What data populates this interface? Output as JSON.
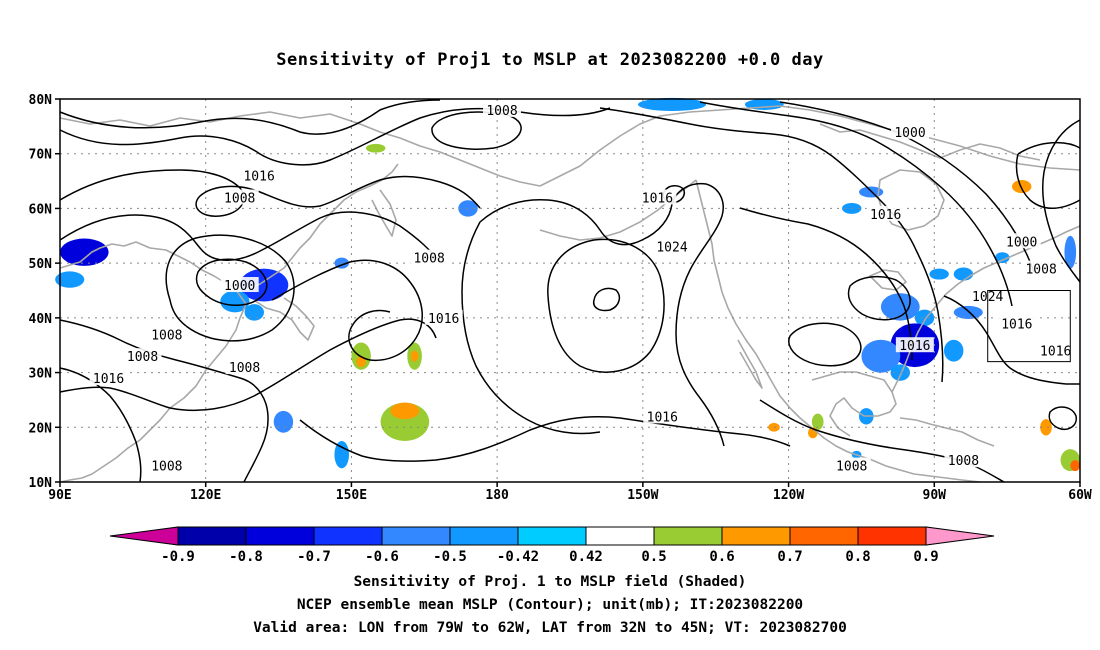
{
  "title": "Sensitivity of Proj1 to MSLP at 2023082200 +0.0 day",
  "captions": [
    "Sensitivity of Proj. 1 to MSLP field (Shaded)",
    "NCEP ensemble mean MSLP (Contour); unit(mb); IT:2023082200",
    "Valid area: LON from 79W to 62W, LAT from 32N to 45N; VT: 2023082700"
  ],
  "map": {
    "lon_range": [
      90,
      300
    ],
    "lat_range": [
      10,
      80
    ],
    "lat_ticks": [
      {
        "lat": 80,
        "label": "80N"
      },
      {
        "lat": 70,
        "label": "70N"
      },
      {
        "lat": 60,
        "label": "60N"
      },
      {
        "lat": 50,
        "label": "50N"
      },
      {
        "lat": 40,
        "label": "40N"
      },
      {
        "lat": 30,
        "label": "30N"
      },
      {
        "lat": 20,
        "label": "20N"
      },
      {
        "lat": 10,
        "label": "10N"
      }
    ],
    "lon_ticks": [
      {
        "lon": 90,
        "label": "90E"
      },
      {
        "lon": 120,
        "label": "120E"
      },
      {
        "lon": 150,
        "label": "150E"
      },
      {
        "lon": 180,
        "label": "180"
      },
      {
        "lon": 210,
        "label": "150W"
      },
      {
        "lon": 240,
        "label": "120W"
      },
      {
        "lon": 270,
        "label": "90W"
      },
      {
        "lon": 300,
        "label": "60W"
      }
    ],
    "valid_area": {
      "lon": [
        281,
        298
      ],
      "lat": [
        32,
        45
      ]
    },
    "contour_labels": [
      {
        "text": "1008",
        "lon": 181,
        "lat": 78
      },
      {
        "text": "1000",
        "lon": 265,
        "lat": 74
      },
      {
        "text": "1016",
        "lon": 131,
        "lat": 66
      },
      {
        "text": "1008",
        "lon": 127,
        "lat": 62
      },
      {
        "text": "1016",
        "lon": 213,
        "lat": 62
      },
      {
        "text": "1016",
        "lon": 260,
        "lat": 59
      },
      {
        "text": "1024",
        "lon": 216,
        "lat": 53
      },
      {
        "text": "1000",
        "lon": 288,
        "lat": 54
      },
      {
        "text": "1008",
        "lon": 166,
        "lat": 51
      },
      {
        "text": "1008",
        "lon": 292,
        "lat": 49
      },
      {
        "text": "1000",
        "lon": 127,
        "lat": 46
      },
      {
        "text": "1024",
        "lon": 281,
        "lat": 44
      },
      {
        "text": "1016",
        "lon": 169,
        "lat": 40
      },
      {
        "text": "1016",
        "lon": 287,
        "lat": 39
      },
      {
        "text": "1008",
        "lon": 112,
        "lat": 37
      },
      {
        "text": "1016",
        "lon": 266,
        "lat": 35
      },
      {
        "text": "1008",
        "lon": 107,
        "lat": 33
      },
      {
        "text": "1016",
        "lon": 295,
        "lat": 34
      },
      {
        "text": "1008",
        "lon": 128,
        "lat": 31
      },
      {
        "text": "1016",
        "lon": 100,
        "lat": 29
      },
      {
        "text": "1016",
        "lon": 214,
        "lat": 22
      },
      {
        "text": "1008",
        "lon": 253,
        "lat": 13
      },
      {
        "text": "1008",
        "lon": 276,
        "lat": 14
      },
      {
        "text": "1008",
        "lon": 112,
        "lat": 13
      }
    ],
    "sensitivity_blobs": [
      {
        "lon": 95,
        "lat": 52,
        "rx": 5,
        "ry": 2.5,
        "v": -0.75
      },
      {
        "lon": 92,
        "lat": 47,
        "rx": 3,
        "ry": 1.5,
        "v": -0.5
      },
      {
        "lon": 132,
        "lat": 46,
        "rx": 5,
        "ry": 3,
        "v": -0.65
      },
      {
        "lon": 126,
        "lat": 43,
        "rx": 3,
        "ry": 2,
        "v": -0.5
      },
      {
        "lon": 130,
        "lat": 41,
        "rx": 2,
        "ry": 1.5,
        "v": -0.5
      },
      {
        "lon": 136,
        "lat": 21,
        "rx": 2,
        "ry": 2,
        "v": -0.6
      },
      {
        "lon": 148,
        "lat": 15,
        "rx": 1.5,
        "ry": 2.5,
        "v": -0.5
      },
      {
        "lon": 148,
        "lat": 50,
        "rx": 1.5,
        "ry": 1,
        "v": -0.55
      },
      {
        "lon": 174,
        "lat": 60,
        "rx": 2,
        "ry": 1.5,
        "v": -0.6
      },
      {
        "lon": 216,
        "lat": 79,
        "rx": 7,
        "ry": 1.2,
        "v": -0.5
      },
      {
        "lon": 235,
        "lat": 79,
        "rx": 4,
        "ry": 1,
        "v": -0.5
      },
      {
        "lon": 257,
        "lat": 63,
        "rx": 2.5,
        "ry": 1,
        "v": -0.55
      },
      {
        "lon": 253,
        "lat": 60,
        "rx": 2,
        "ry": 1,
        "v": -0.5
      },
      {
        "lon": 271,
        "lat": 48,
        "rx": 2,
        "ry": 1,
        "v": -0.5
      },
      {
        "lon": 276,
        "lat": 48,
        "rx": 2,
        "ry": 1.2,
        "v": -0.5
      },
      {
        "lon": 263,
        "lat": 42,
        "rx": 4,
        "ry": 2.5,
        "v": -0.6
      },
      {
        "lon": 268,
        "lat": 40,
        "rx": 2,
        "ry": 1.5,
        "v": -0.5
      },
      {
        "lon": 277,
        "lat": 41,
        "rx": 3,
        "ry": 1.2,
        "v": -0.55
      },
      {
        "lon": 266,
        "lat": 35,
        "rx": 5,
        "ry": 4,
        "v": -0.75
      },
      {
        "lon": 259,
        "lat": 33,
        "rx": 4,
        "ry": 3,
        "v": -0.6
      },
      {
        "lon": 263,
        "lat": 30,
        "rx": 2,
        "ry": 1.5,
        "v": -0.5
      },
      {
        "lon": 274,
        "lat": 34,
        "rx": 2,
        "ry": 2,
        "v": -0.5
      },
      {
        "lon": 284,
        "lat": 51,
        "rx": 1.5,
        "ry": 1,
        "v": -0.5
      },
      {
        "lon": 298,
        "lat": 52,
        "rx": 1.2,
        "ry": 3,
        "v": -0.6
      },
      {
        "lon": 256,
        "lat": 22,
        "rx": 1.5,
        "ry": 1.5,
        "v": -0.5
      },
      {
        "lon": 254,
        "lat": 15,
        "rx": 1,
        "ry": 0.7,
        "v": -0.45
      },
      {
        "lon": 161,
        "lat": 21,
        "rx": 5,
        "ry": 3.5,
        "v": 0.5
      },
      {
        "lon": 161,
        "lat": 23,
        "rx": 3,
        "ry": 1.5,
        "v": 0.65
      },
      {
        "lon": 152,
        "lat": 33,
        "rx": 2,
        "ry": 2.5,
        "v": 0.5
      },
      {
        "lon": 152,
        "lat": 32,
        "rx": 1,
        "ry": 1,
        "v": 0.65
      },
      {
        "lon": 163,
        "lat": 33,
        "rx": 1.5,
        "ry": 2.5,
        "v": 0.5
      },
      {
        "lon": 163,
        "lat": 33,
        "rx": 0.8,
        "ry": 1,
        "v": 0.65
      },
      {
        "lon": 104,
        "lat": 27,
        "rx": 2,
        "ry": 1,
        "v": 0.45
      },
      {
        "lon": 164,
        "lat": 13,
        "rx": 2,
        "ry": 2,
        "v": 0.45
      },
      {
        "lon": 151,
        "lat": 74,
        "rx": 4,
        "ry": 1.5,
        "v": 0.45
      },
      {
        "lon": 160,
        "lat": 73,
        "rx": 4,
        "ry": 1.5,
        "v": 0.45
      },
      {
        "lon": 155,
        "lat": 71,
        "rx": 2,
        "ry": 0.8,
        "v": 0.55
      },
      {
        "lon": 290,
        "lat": 65,
        "rx": 4,
        "ry": 2.5,
        "v": 0.45
      },
      {
        "lon": 288,
        "lat": 64,
        "rx": 2,
        "ry": 1.2,
        "v": 0.6
      },
      {
        "lon": 296,
        "lat": 49,
        "rx": 1,
        "ry": 1,
        "v": 0.45
      },
      {
        "lon": 298,
        "lat": 14,
        "rx": 2,
        "ry": 2,
        "v": 0.5
      },
      {
        "lon": 299,
        "lat": 13,
        "rx": 1,
        "ry": 1,
        "v": 0.7
      },
      {
        "lon": 293,
        "lat": 20,
        "rx": 1.2,
        "ry": 1.5,
        "v": 0.6
      },
      {
        "lon": 246,
        "lat": 21,
        "rx": 1.2,
        "ry": 1.5,
        "v": 0.55
      },
      {
        "lon": 245,
        "lat": 19,
        "rx": 1,
        "ry": 1,
        "v": 0.6
      },
      {
        "lon": 237,
        "lat": 20,
        "rx": 1.2,
        "ry": 0.8,
        "v": 0.6
      },
      {
        "lon": 246,
        "lat": 50,
        "rx": 0.8,
        "ry": 1,
        "v": 0.45
      },
      {
        "lon": 199,
        "lat": 50,
        "rx": 0.6,
        "ry": 1,
        "v": 0.45
      }
    ]
  },
  "colorbar": {
    "levels": [
      "-0.9",
      "-0.8",
      "-0.7",
      "-0.6",
      "-0.5",
      "-0.42",
      "0.42",
      "0.5",
      "0.6",
      "0.7",
      "0.8",
      "0.9"
    ],
    "colors": [
      "#cc0099",
      "#0000aa",
      "#0000dd",
      "#1133ff",
      "#3388ff",
      "#1199ff",
      "#00ccff",
      "#ffffff",
      "#99cc33",
      "#ff9900",
      "#ff6600",
      "#ff3300",
      "#ff0000",
      "#ff99cc"
    ]
  }
}
